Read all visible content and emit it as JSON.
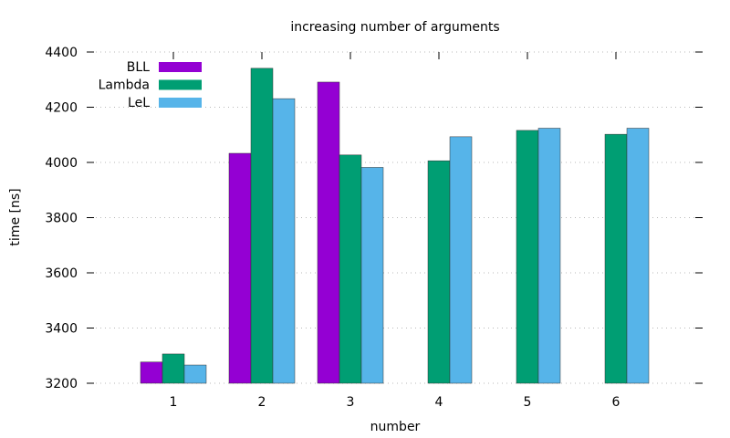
{
  "chart_data": {
    "type": "bar",
    "title": "increasing number of arguments",
    "xlabel": "number",
    "ylabel": "time [ns]",
    "categories": [
      "1",
      "2",
      "3",
      "4",
      "5",
      "6"
    ],
    "ylim": [
      3200,
      4400
    ],
    "yticks": [
      3200,
      3400,
      3600,
      3800,
      4000,
      4200,
      4400
    ],
    "grid": true,
    "legend_position": "top-left",
    "series": [
      {
        "name": "BLL",
        "color": "#9400d3",
        "values": [
          3277,
          4033,
          4291,
          null,
          null,
          null
        ]
      },
      {
        "name": "Lambda",
        "color": "#009e73",
        "values": [
          3306,
          4341,
          4027,
          4006,
          4116,
          4102
        ]
      },
      {
        "name": "LeL",
        "color": "#56b4e9",
        "values": [
          3266,
          4231,
          3982,
          4093,
          4124,
          4124
        ]
      }
    ]
  }
}
